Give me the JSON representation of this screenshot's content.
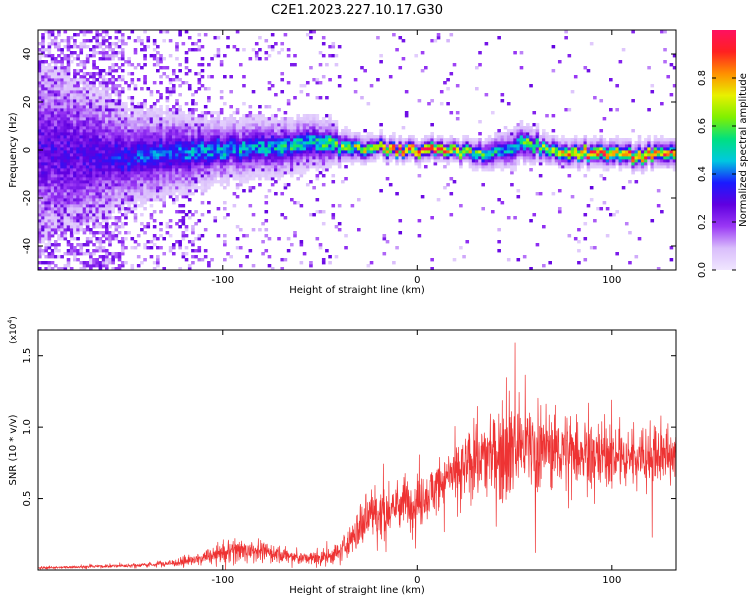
{
  "figure": {
    "title": "C2E1.2023.227.10.17.G30"
  },
  "chart_data": [
    {
      "type": "heatmap",
      "xlabel": "Height of straight line (km)",
      "ylabel": "Frequency (Hz)",
      "xlim": [
        -195,
        133
      ],
      "ylim": [
        -50,
        50
      ],
      "xticks": [
        -100,
        0,
        100
      ],
      "yticks": [
        -40,
        -20,
        0,
        20,
        40
      ],
      "colorbar": {
        "label": "Normalized spectral amplitude",
        "range": [
          0,
          1
        ],
        "ticks": [
          "0.0",
          "0.2",
          "0.4",
          "0.6",
          "0.8"
        ],
        "tick_values": [
          0,
          0.2,
          0.4,
          0.6,
          0.8
        ],
        "colormap": [
          "#f0e6ff",
          "#d9bdfb",
          "#9a38f5",
          "#6000e0",
          "#1a1aff",
          "#00c8e0",
          "#00e080",
          "#80f000",
          "#e8f000",
          "#ff9000",
          "#ff2020",
          "#ff1060"
        ]
      },
      "ridge": {
        "profile_x": [
          -195,
          -170,
          -150,
          -120,
          -100,
          -80,
          -60,
          -45,
          -40,
          -30,
          -20,
          -10,
          0,
          10,
          20,
          30,
          40,
          50,
          57,
          65,
          75,
          85,
          95,
          105,
          115,
          125,
          133
        ],
        "profile_center": [
          0,
          -2,
          -3,
          -1,
          0,
          1,
          2,
          3,
          2,
          1,
          1,
          0,
          0,
          0,
          0,
          -1,
          -1,
          1,
          3,
          0,
          -1,
          -1,
          -1,
          -2,
          -2,
          -1,
          -1
        ],
        "profile_halfwidth": [
          18,
          14,
          10,
          8,
          6.5,
          6,
          5.5,
          5,
          3.5,
          3,
          2.5,
          2.5,
          2.5,
          2.5,
          2.5,
          3,
          3.5,
          4,
          4,
          3,
          3,
          3,
          3,
          3,
          3,
          3,
          3
        ],
        "profile_peak": [
          0.2,
          0.25,
          0.35,
          0.4,
          0.45,
          0.45,
          0.5,
          0.55,
          0.6,
          0.65,
          0.72,
          0.85,
          0.95,
          0.9,
          0.8,
          0.6,
          0.5,
          0.5,
          0.6,
          0.6,
          0.75,
          0.8,
          0.85,
          0.8,
          0.85,
          0.8,
          0.8
        ]
      }
    },
    {
      "type": "line",
      "xlabel": "Height of straight line (km)",
      "ylabel": "SNR (10 * v/v)",
      "ylabel_multiplier": "(x10",
      "ylabel_multiplier_exp": "4",
      "ylabel_multiplier_close": ")",
      "xlim": [
        -195,
        133
      ],
      "ylim": [
        0,
        1.68
      ],
      "xticks": [
        -100,
        0,
        100
      ],
      "yticks": [
        "0.5",
        "1.0",
        "1.5"
      ],
      "ytick_values": [
        0.5,
        1.0,
        1.5
      ],
      "color": "#ee3333",
      "series": [
        {
          "x": [
            -195,
            -180,
            -165,
            -150,
            -135,
            -125,
            -115,
            -105,
            -95,
            -85,
            -75,
            -65,
            -55,
            -45,
            -38,
            -32,
            -28,
            -25,
            -22,
            -18,
            -14,
            -10,
            -6,
            -2,
            2,
            6,
            10,
            14,
            18,
            22,
            26,
            30,
            34,
            38,
            42,
            46,
            50,
            54,
            58,
            62,
            66,
            70,
            75,
            80,
            85,
            90,
            95,
            100,
            105,
            110,
            115,
            120,
            125,
            130,
            133
          ],
          "mean": [
            0.015,
            0.02,
            0.025,
            0.03,
            0.04,
            0.05,
            0.07,
            0.1,
            0.13,
            0.14,
            0.12,
            0.09,
            0.08,
            0.09,
            0.15,
            0.25,
            0.32,
            0.38,
            0.4,
            0.38,
            0.42,
            0.46,
            0.48,
            0.46,
            0.5,
            0.54,
            0.58,
            0.62,
            0.66,
            0.68,
            0.72,
            0.76,
            0.78,
            0.8,
            0.84,
            0.86,
            0.88,
            0.88,
            0.86,
            0.86,
            0.86,
            0.85,
            0.84,
            0.84,
            0.83,
            0.82,
            0.81,
            0.8,
            0.8,
            0.8,
            0.8,
            0.79,
            0.8,
            0.8,
            0.8
          ],
          "amp": [
            0.01,
            0.01,
            0.012,
            0.015,
            0.02,
            0.03,
            0.04,
            0.06,
            0.09,
            0.09,
            0.08,
            0.06,
            0.05,
            0.06,
            0.1,
            0.14,
            0.16,
            0.2,
            0.22,
            0.18,
            0.16,
            0.18,
            0.2,
            0.18,
            0.18,
            0.2,
            0.22,
            0.22,
            0.24,
            0.26,
            0.26,
            0.28,
            0.3,
            0.34,
            0.38,
            0.4,
            0.42,
            0.4,
            0.36,
            0.34,
            0.32,
            0.3,
            0.28,
            0.28,
            0.27,
            0.26,
            0.25,
            0.24,
            0.24,
            0.24,
            0.24,
            0.24,
            0.23,
            0.23,
            0.23
          ]
        }
      ]
    }
  ]
}
